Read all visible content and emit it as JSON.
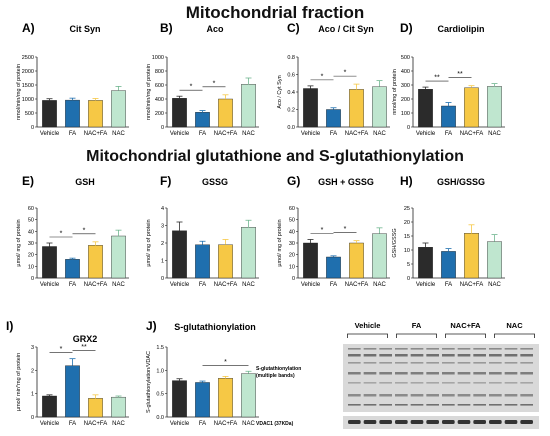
{
  "headers": {
    "top": "Mitochondrial fraction",
    "middle": "Mitochondrial glutathione and S-glutathionylation"
  },
  "colors": {
    "Vehicle": "#2b2b2b",
    "FA": "#1f6fae",
    "NAC+FA": "#f6c845",
    "NAC": "#bfe6cf"
  },
  "chart_data": [
    {
      "type": "bar",
      "letter": "A)",
      "title": "Cit Syn",
      "ylabel": "nmol/min/mg of protein",
      "categories": [
        "Vehicle",
        "FA",
        "NAC+FA",
        "NAC"
      ],
      "values": [
        950,
        960,
        950,
        1300
      ],
      "errors": [
        60,
        70,
        70,
        150
      ],
      "ylim": [
        0,
        2500
      ],
      "yticks": [
        "0",
        "500",
        "1000",
        "1500",
        "2000",
        "2500"
      ],
      "sig": []
    },
    {
      "type": "bar",
      "letter": "B)",
      "title": "Aco",
      "ylabel": "nmol/min/mg of protein",
      "categories": [
        "Vehicle",
        "FA",
        "NAC+FA",
        "NAC"
      ],
      "values": [
        410,
        210,
        400,
        610
      ],
      "errors": [
        30,
        25,
        60,
        90
      ],
      "ylim": [
        0,
        1000
      ],
      "yticks": [
        "0",
        "200",
        "400",
        "600",
        "800",
        "1000"
      ],
      "sig": [
        {
          "from": 0,
          "to": 1,
          "label": "*"
        },
        {
          "from": 1,
          "to": 2,
          "label": "*"
        }
      ]
    },
    {
      "type": "bar",
      "letter": "C)",
      "title": "Aco / Cit Syn",
      "ylabel": "Aco / Cyt Syn",
      "categories": [
        "Vehicle",
        "FA",
        "NAC+FA",
        "NAC"
      ],
      "values": [
        0.44,
        0.2,
        0.43,
        0.46
      ],
      "errors": [
        0.03,
        0.02,
        0.06,
        0.07
      ],
      "ylim": [
        0,
        0.8
      ],
      "yticks": [
        "0.0",
        "0.2",
        "0.4",
        "0.6",
        "0.8"
      ],
      "sig": [
        {
          "from": 0,
          "to": 1,
          "label": "*"
        },
        {
          "from": 1,
          "to": 2,
          "label": "*"
        }
      ]
    },
    {
      "type": "bar",
      "letter": "D)",
      "title": "Cardiolipin",
      "ylabel": "nmol/mg of protein",
      "categories": [
        "Vehicle",
        "FA",
        "NAC+FA",
        "NAC"
      ],
      "values": [
        270,
        150,
        280,
        290
      ],
      "errors": [
        15,
        25,
        15,
        20
      ],
      "ylim": [
        0,
        500
      ],
      "yticks": [
        "0",
        "100",
        "200",
        "300",
        "400",
        "500"
      ],
      "sig": [
        {
          "from": 0,
          "to": 1,
          "label": "**"
        },
        {
          "from": 1,
          "to": 2,
          "label": "**"
        }
      ]
    },
    {
      "type": "bar",
      "letter": "E)",
      "title": "GSH",
      "ylabel": "µmol/ mg of protein",
      "categories": [
        "Vehicle",
        "FA",
        "NAC+FA",
        "NAC"
      ],
      "values": [
        27,
        16,
        28,
        36
      ],
      "errors": [
        3,
        1,
        3,
        5
      ],
      "ylim": [
        0,
        60
      ],
      "yticks": [
        "0",
        "10",
        "20",
        "30",
        "40",
        "50",
        "60"
      ],
      "sig": [
        {
          "from": 0,
          "to": 1,
          "label": "*"
        },
        {
          "from": 1,
          "to": 2,
          "label": "*"
        }
      ]
    },
    {
      "type": "bar",
      "letter": "F)",
      "title": "GSSG",
      "ylabel": "µmol/ mg of protein",
      "categories": [
        "Vehicle",
        "FA",
        "NAC+FA",
        "NAC"
      ],
      "values": [
        2.7,
        1.9,
        1.9,
        2.9
      ],
      "errors": [
        0.5,
        0.2,
        0.3,
        0.4
      ],
      "ylim": [
        0,
        4
      ],
      "yticks": [
        "0",
        "1",
        "2",
        "3",
        "4"
      ],
      "sig": []
    },
    {
      "type": "bar",
      "letter": "G)",
      "title": "GSH + GSSG",
      "ylabel": "µmol/ mg of protein",
      "categories": [
        "Vehicle",
        "FA",
        "NAC+FA",
        "NAC"
      ],
      "values": [
        30,
        18,
        30,
        38
      ],
      "errors": [
        3,
        1,
        2,
        5
      ],
      "ylim": [
        0,
        60
      ],
      "yticks": [
        "0",
        "10",
        "20",
        "30",
        "40",
        "50",
        "60"
      ],
      "sig": [
        {
          "from": 0,
          "to": 1,
          "label": "*"
        },
        {
          "from": 1,
          "to": 2,
          "label": "*"
        }
      ]
    },
    {
      "type": "bar",
      "letter": "H)",
      "title": "GSH/GSSG",
      "ylabel": "GSH/GSSG",
      "categories": [
        "Vehicle",
        "FA",
        "NAC+FA",
        "NAC"
      ],
      "values": [
        11,
        9.5,
        16,
        13
      ],
      "errors": [
        1.5,
        1,
        3,
        2.5
      ],
      "ylim": [
        0,
        25
      ],
      "yticks": [
        "0",
        "5",
        "10",
        "15",
        "20",
        "25"
      ],
      "sig": []
    },
    {
      "type": "bar",
      "letter": "I)",
      "title": "GRX2",
      "ylabel": "µmol/ min*mg of protein",
      "categories": [
        "Vehicle",
        "FA",
        "NAC+FA",
        "NAC"
      ],
      "values": [
        0.9,
        2.2,
        0.8,
        0.85
      ],
      "errors": [
        0.05,
        0.3,
        0.15,
        0.05
      ],
      "ylim": [
        0,
        3
      ],
      "yticks": [
        "0",
        "1",
        "2",
        "3"
      ],
      "sig": [
        {
          "from": 0,
          "to": 1,
          "label": "*"
        },
        {
          "from": 1,
          "to": 2,
          "label": "**"
        }
      ]
    },
    {
      "type": "bar",
      "letter": "J)",
      "title": "S-glutathionylation",
      "ylabel": "S-glutathionylation/VDAC",
      "categories": [
        "Vehicle",
        "FA",
        "NAC+FA",
        "NAC"
      ],
      "values": [
        0.78,
        0.74,
        0.83,
        0.93
      ],
      "errors": [
        0.04,
        0.03,
        0.04,
        0.05
      ],
      "ylim": [
        0,
        1.5
      ],
      "yticks": [
        "0.0",
        "0.5",
        "1.0",
        "1.5"
      ],
      "sig": [
        {
          "from": 1,
          "to": 3,
          "label": "*"
        }
      ]
    }
  ],
  "blot": {
    "groups": [
      "Vehicle",
      "FA",
      "NAC+FA",
      "NAC"
    ],
    "label_main": "S-glutathionylation",
    "label_sub": "(multiple bands)",
    "label_vdac": "VDAC1 (37KDa)"
  }
}
